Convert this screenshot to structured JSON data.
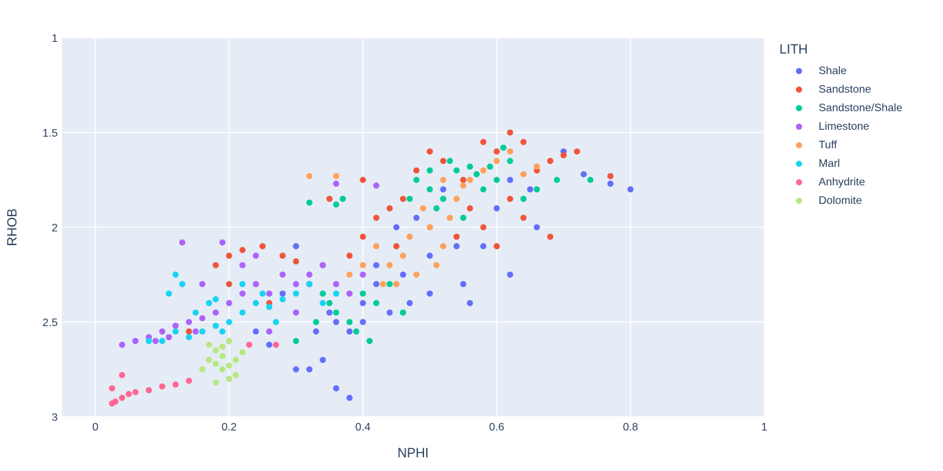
{
  "chart_data": {
    "type": "scatter",
    "xlabel": "NPHI",
    "ylabel": "RHOB",
    "xlim": [
      -0.05,
      1.0
    ],
    "ylim": [
      3.0,
      1.0
    ],
    "y_reversed": true,
    "x_ticks": [
      0,
      0.2,
      0.4,
      0.6,
      0.8,
      1
    ],
    "x_tick_labels": [
      "0",
      "0.2",
      "0.4",
      "0.6",
      "0.8",
      "1"
    ],
    "y_ticks": [
      1,
      1.5,
      2,
      2.5,
      3
    ],
    "y_tick_labels": [
      "1",
      "1.5",
      "2",
      "2.5",
      "3"
    ],
    "grid": true,
    "legend_title": "LITH",
    "legend_position": "right",
    "series": [
      {
        "name": "Shale",
        "color": "#636efa",
        "points": [
          [
            0.3,
            2.1
          ],
          [
            0.32,
            2.3
          ],
          [
            0.35,
            2.45
          ],
          [
            0.38,
            2.55
          ],
          [
            0.4,
            2.4
          ],
          [
            0.42,
            2.2
          ],
          [
            0.45,
            2.0
          ],
          [
            0.48,
            1.95
          ],
          [
            0.5,
            2.15
          ],
          [
            0.52,
            1.8
          ],
          [
            0.55,
            2.3
          ],
          [
            0.58,
            2.1
          ],
          [
            0.6,
            1.9
          ],
          [
            0.62,
            1.75
          ],
          [
            0.65,
            1.8
          ],
          [
            0.68,
            1.65
          ],
          [
            0.7,
            1.6
          ],
          [
            0.73,
            1.72
          ],
          [
            0.77,
            1.77
          ],
          [
            0.8,
            1.8
          ],
          [
            0.38,
            2.9
          ],
          [
            0.36,
            2.85
          ],
          [
            0.32,
            2.75
          ],
          [
            0.26,
            2.62
          ],
          [
            0.24,
            2.55
          ],
          [
            0.28,
            2.35
          ],
          [
            0.44,
            2.45
          ],
          [
            0.5,
            2.35
          ],
          [
            0.56,
            2.4
          ],
          [
            0.34,
            2.7
          ],
          [
            0.3,
            2.75
          ],
          [
            0.46,
            2.25
          ],
          [
            0.4,
            2.5
          ],
          [
            0.36,
            2.5
          ],
          [
            0.66,
            2.0
          ],
          [
            0.62,
            2.25
          ],
          [
            0.54,
            2.1
          ],
          [
            0.42,
            2.3
          ],
          [
            0.33,
            2.55
          ],
          [
            0.47,
            2.4
          ]
        ]
      },
      {
        "name": "Sandstone",
        "color": "#ef553b",
        "points": [
          [
            0.18,
            2.2
          ],
          [
            0.2,
            2.15
          ],
          [
            0.22,
            2.12
          ],
          [
            0.25,
            2.1
          ],
          [
            0.28,
            2.15
          ],
          [
            0.3,
            2.18
          ],
          [
            0.34,
            2.2
          ],
          [
            0.38,
            2.15
          ],
          [
            0.4,
            2.05
          ],
          [
            0.42,
            1.95
          ],
          [
            0.44,
            1.9
          ],
          [
            0.46,
            1.85
          ],
          [
            0.48,
            1.7
          ],
          [
            0.5,
            1.6
          ],
          [
            0.52,
            1.65
          ],
          [
            0.55,
            1.75
          ],
          [
            0.58,
            1.55
          ],
          [
            0.6,
            1.6
          ],
          [
            0.62,
            1.5
          ],
          [
            0.64,
            1.55
          ],
          [
            0.66,
            1.7
          ],
          [
            0.68,
            1.65
          ],
          [
            0.7,
            1.62
          ],
          [
            0.72,
            1.6
          ],
          [
            0.77,
            1.73
          ],
          [
            0.54,
            2.05
          ],
          [
            0.58,
            2.0
          ],
          [
            0.6,
            2.1
          ],
          [
            0.56,
            1.9
          ],
          [
            0.64,
            1.95
          ],
          [
            0.68,
            2.05
          ],
          [
            0.45,
            2.1
          ],
          [
            0.5,
            2.0
          ],
          [
            0.35,
            1.85
          ],
          [
            0.32,
            2.3
          ],
          [
            0.26,
            2.4
          ],
          [
            0.14,
            2.55
          ],
          [
            0.2,
            2.3
          ],
          [
            0.4,
            1.75
          ],
          [
            0.62,
            1.85
          ]
        ]
      },
      {
        "name": "Sandstone/Shale",
        "color": "#00cc96",
        "points": [
          [
            0.32,
            1.87
          ],
          [
            0.36,
            1.88
          ],
          [
            0.37,
            1.85
          ],
          [
            0.48,
            1.75
          ],
          [
            0.5,
            1.8
          ],
          [
            0.52,
            1.85
          ],
          [
            0.54,
            1.7
          ],
          [
            0.56,
            1.68
          ],
          [
            0.58,
            1.8
          ],
          [
            0.6,
            1.75
          ],
          [
            0.62,
            1.65
          ],
          [
            0.64,
            1.85
          ],
          [
            0.51,
            1.9
          ],
          [
            0.55,
            1.95
          ],
          [
            0.53,
            1.65
          ],
          [
            0.57,
            1.72
          ],
          [
            0.5,
            1.7
          ],
          [
            0.66,
            1.8
          ],
          [
            0.69,
            1.75
          ],
          [
            0.74,
            1.75
          ],
          [
            0.35,
            2.4
          ],
          [
            0.38,
            2.5
          ],
          [
            0.4,
            2.35
          ],
          [
            0.36,
            2.45
          ],
          [
            0.42,
            2.4
          ],
          [
            0.44,
            2.3
          ],
          [
            0.3,
            2.6
          ],
          [
            0.33,
            2.5
          ],
          [
            0.46,
            2.45
          ],
          [
            0.39,
            2.55
          ],
          [
            0.41,
            2.6
          ],
          [
            0.34,
            2.35
          ],
          [
            0.59,
            1.68
          ],
          [
            0.61,
            1.58
          ],
          [
            0.47,
            1.85
          ],
          [
            0.45,
            2.3
          ]
        ]
      },
      {
        "name": "Limestone",
        "color": "#ab63fa",
        "points": [
          [
            0.04,
            2.62
          ],
          [
            0.06,
            2.6
          ],
          [
            0.08,
            2.58
          ],
          [
            0.1,
            2.55
          ],
          [
            0.12,
            2.52
          ],
          [
            0.14,
            2.5
          ],
          [
            0.16,
            2.48
          ],
          [
            0.18,
            2.45
          ],
          [
            0.2,
            2.4
          ],
          [
            0.22,
            2.35
          ],
          [
            0.24,
            2.3
          ],
          [
            0.26,
            2.35
          ],
          [
            0.28,
            2.25
          ],
          [
            0.3,
            2.3
          ],
          [
            0.32,
            2.25
          ],
          [
            0.34,
            2.2
          ],
          [
            0.36,
            2.3
          ],
          [
            0.38,
            2.35
          ],
          [
            0.4,
            2.25
          ],
          [
            0.13,
            2.08
          ],
          [
            0.19,
            2.08
          ],
          [
            0.24,
            2.15
          ],
          [
            0.2,
            2.6
          ],
          [
            0.26,
            2.55
          ],
          [
            0.36,
            1.77
          ],
          [
            0.42,
            1.78
          ],
          [
            0.16,
            2.3
          ],
          [
            0.22,
            2.2
          ],
          [
            0.11,
            2.58
          ],
          [
            0.3,
            2.45
          ],
          [
            0.09,
            2.6
          ],
          [
            0.15,
            2.55
          ]
        ]
      },
      {
        "name": "Tuff",
        "color": "#ffa15a",
        "points": [
          [
            0.32,
            1.73
          ],
          [
            0.36,
            1.73
          ],
          [
            0.42,
            2.1
          ],
          [
            0.44,
            2.2
          ],
          [
            0.45,
            2.3
          ],
          [
            0.46,
            2.15
          ],
          [
            0.47,
            2.05
          ],
          [
            0.48,
            2.25
          ],
          [
            0.5,
            2.0
          ],
          [
            0.52,
            2.1
          ],
          [
            0.53,
            1.95
          ],
          [
            0.54,
            1.85
          ],
          [
            0.55,
            1.78
          ],
          [
            0.56,
            1.75
          ],
          [
            0.58,
            1.7
          ],
          [
            0.6,
            1.65
          ],
          [
            0.62,
            1.6
          ],
          [
            0.64,
            1.72
          ],
          [
            0.66,
            1.68
          ],
          [
            0.52,
            1.75
          ],
          [
            0.4,
            2.2
          ],
          [
            0.38,
            2.25
          ],
          [
            0.49,
            1.9
          ],
          [
            0.51,
            2.2
          ],
          [
            0.43,
            2.3
          ]
        ]
      },
      {
        "name": "Marl",
        "color": "#19d3f3",
        "points": [
          [
            0.1,
            2.6
          ],
          [
            0.12,
            2.55
          ],
          [
            0.14,
            2.58
          ],
          [
            0.16,
            2.55
          ],
          [
            0.18,
            2.52
          ],
          [
            0.2,
            2.5
          ],
          [
            0.22,
            2.45
          ],
          [
            0.24,
            2.4
          ],
          [
            0.26,
            2.42
          ],
          [
            0.28,
            2.38
          ],
          [
            0.3,
            2.35
          ],
          [
            0.32,
            2.3
          ],
          [
            0.34,
            2.4
          ],
          [
            0.36,
            2.35
          ],
          [
            0.12,
            2.25
          ],
          [
            0.13,
            2.3
          ],
          [
            0.11,
            2.35
          ],
          [
            0.18,
            2.38
          ],
          [
            0.17,
            2.4
          ],
          [
            0.22,
            2.3
          ],
          [
            0.25,
            2.35
          ],
          [
            0.15,
            2.45
          ],
          [
            0.19,
            2.55
          ],
          [
            0.08,
            2.6
          ],
          [
            0.27,
            2.5
          ]
        ]
      },
      {
        "name": "Anhydrite",
        "color": "#ff6692",
        "points": [
          [
            0.025,
            2.93
          ],
          [
            0.03,
            2.92
          ],
          [
            0.04,
            2.9
          ],
          [
            0.05,
            2.88
          ],
          [
            0.06,
            2.87
          ],
          [
            0.08,
            2.86
          ],
          [
            0.1,
            2.84
          ],
          [
            0.12,
            2.83
          ],
          [
            0.14,
            2.81
          ],
          [
            0.025,
            2.85
          ],
          [
            0.04,
            2.78
          ],
          [
            0.23,
            2.62
          ],
          [
            0.27,
            2.62
          ]
        ]
      },
      {
        "name": "Dolomite",
        "color": "#b6e880",
        "points": [
          [
            0.17,
            2.62
          ],
          [
            0.18,
            2.65
          ],
          [
            0.19,
            2.68
          ],
          [
            0.2,
            2.6
          ],
          [
            0.21,
            2.7
          ],
          [
            0.18,
            2.72
          ],
          [
            0.19,
            2.75
          ],
          [
            0.2,
            2.8
          ],
          [
            0.18,
            2.82
          ],
          [
            0.21,
            2.78
          ],
          [
            0.16,
            2.75
          ],
          [
            0.22,
            2.66
          ],
          [
            0.17,
            2.7
          ],
          [
            0.19,
            2.63
          ],
          [
            0.2,
            2.73
          ]
        ]
      }
    ]
  }
}
